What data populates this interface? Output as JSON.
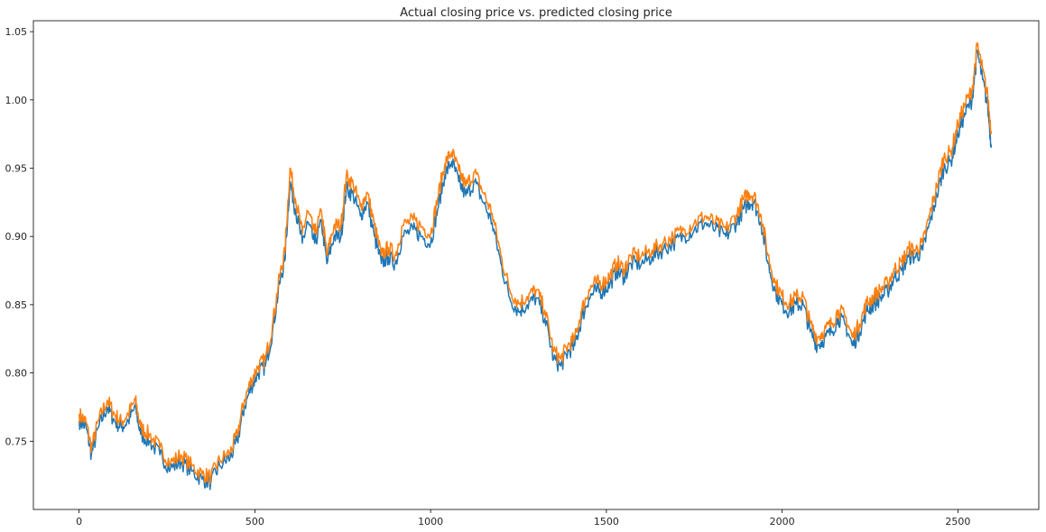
{
  "chart_data": {
    "type": "line",
    "title": "Actual closing price vs. predicted closing price",
    "xlabel": "",
    "ylabel": "",
    "xlim": [
      -130,
      2730
    ],
    "ylim": [
      0.7,
      1.058
    ],
    "xticks": [
      0,
      500,
      1000,
      1500,
      2000,
      2500
    ],
    "xtick_labels": [
      "0",
      "500",
      "1000",
      "1500",
      "2000",
      "2500"
    ],
    "yticks": [
      0.75,
      0.8,
      0.85,
      0.9,
      0.95,
      1.0,
      1.05
    ],
    "ytick_labels": [
      "0.75",
      "0.80",
      "0.85",
      "0.90",
      "0.95",
      "1.00",
      "1.05"
    ],
    "grid": false,
    "legend": "none",
    "series": [
      {
        "color": "#1f77b4",
        "points": [
          [
            0,
            0.765
          ],
          [
            20,
            0.76
          ],
          [
            35,
            0.74
          ],
          [
            55,
            0.76
          ],
          [
            80,
            0.775
          ],
          [
            100,
            0.765
          ],
          [
            120,
            0.76
          ],
          [
            140,
            0.765
          ],
          [
            160,
            0.775
          ],
          [
            175,
            0.755
          ],
          [
            200,
            0.75
          ],
          [
            230,
            0.74
          ],
          [
            260,
            0.73
          ],
          [
            290,
            0.735
          ],
          [
            320,
            0.728
          ],
          [
            350,
            0.722
          ],
          [
            375,
            0.72
          ],
          [
            400,
            0.732
          ],
          [
            430,
            0.738
          ],
          [
            450,
            0.75
          ],
          [
            470,
            0.775
          ],
          [
            490,
            0.79
          ],
          [
            510,
            0.8
          ],
          [
            530,
            0.805
          ],
          [
            550,
            0.83
          ],
          [
            570,
            0.865
          ],
          [
            585,
            0.882
          ],
          [
            600,
            0.94
          ],
          [
            615,
            0.92
          ],
          [
            635,
            0.895
          ],
          [
            650,
            0.91
          ],
          [
            670,
            0.895
          ],
          [
            690,
            0.91
          ],
          [
            705,
            0.88
          ],
          [
            725,
            0.9
          ],
          [
            745,
            0.9
          ],
          [
            760,
            0.935
          ],
          [
            780,
            0.93
          ],
          [
            800,
            0.915
          ],
          [
            820,
            0.925
          ],
          [
            840,
            0.9
          ],
          [
            860,
            0.88
          ],
          [
            880,
            0.885
          ],
          [
            900,
            0.88
          ],
          [
            920,
            0.9
          ],
          [
            950,
            0.905
          ],
          [
            975,
            0.9
          ],
          [
            1000,
            0.895
          ],
          [
            1020,
            0.92
          ],
          [
            1040,
            0.945
          ],
          [
            1060,
            0.955
          ],
          [
            1080,
            0.94
          ],
          [
            1100,
            0.93
          ],
          [
            1125,
            0.94
          ],
          [
            1150,
            0.925
          ],
          [
            1175,
            0.91
          ],
          [
            1200,
            0.88
          ],
          [
            1225,
            0.855
          ],
          [
            1250,
            0.845
          ],
          [
            1275,
            0.85
          ],
          [
            1300,
            0.855
          ],
          [
            1325,
            0.84
          ],
          [
            1350,
            0.81
          ],
          [
            1370,
            0.805
          ],
          [
            1390,
            0.815
          ],
          [
            1410,
            0.82
          ],
          [
            1430,
            0.84
          ],
          [
            1450,
            0.855
          ],
          [
            1470,
            0.86
          ],
          [
            1490,
            0.86
          ],
          [
            1510,
            0.865
          ],
          [
            1530,
            0.875
          ],
          [
            1550,
            0.87
          ],
          [
            1570,
            0.88
          ],
          [
            1600,
            0.88
          ],
          [
            1630,
            0.885
          ],
          [
            1660,
            0.89
          ],
          [
            1690,
            0.895
          ],
          [
            1720,
            0.9
          ],
          [
            1750,
            0.905
          ],
          [
            1780,
            0.91
          ],
          [
            1810,
            0.905
          ],
          [
            1840,
            0.9
          ],
          [
            1870,
            0.91
          ],
          [
            1890,
            0.92
          ],
          [
            1905,
            0.925
          ],
          [
            1920,
            0.925
          ],
          [
            1940,
            0.91
          ],
          [
            1960,
            0.88
          ],
          [
            1980,
            0.86
          ],
          [
            2000,
            0.85
          ],
          [
            2020,
            0.845
          ],
          [
            2040,
            0.85
          ],
          [
            2060,
            0.85
          ],
          [
            2080,
            0.83
          ],
          [
            2100,
            0.82
          ],
          [
            2120,
            0.825
          ],
          [
            2140,
            0.83
          ],
          [
            2160,
            0.84
          ],
          [
            2180,
            0.835
          ],
          [
            2200,
            0.82
          ],
          [
            2220,
            0.83
          ],
          [
            2240,
            0.845
          ],
          [
            2260,
            0.85
          ],
          [
            2280,
            0.855
          ],
          [
            2300,
            0.86
          ],
          [
            2320,
            0.87
          ],
          [
            2340,
            0.875
          ],
          [
            2360,
            0.885
          ],
          [
            2380,
            0.885
          ],
          [
            2400,
            0.89
          ],
          [
            2420,
            0.91
          ],
          [
            2440,
            0.93
          ],
          [
            2460,
            0.95
          ],
          [
            2480,
            0.955
          ],
          [
            2500,
            0.975
          ],
          [
            2520,
            0.99
          ],
          [
            2540,
            1.0
          ],
          [
            2555,
            1.035
          ],
          [
            2570,
            1.015
          ],
          [
            2585,
            0.995
          ],
          [
            2595,
            0.965
          ]
        ]
      },
      {
        "color": "#ff7f0e",
        "points": [
          [
            0,
            0.77
          ],
          [
            20,
            0.764
          ],
          [
            35,
            0.745
          ],
          [
            55,
            0.765
          ],
          [
            80,
            0.78
          ],
          [
            100,
            0.77
          ],
          [
            120,
            0.764
          ],
          [
            140,
            0.77
          ],
          [
            160,
            0.78
          ],
          [
            175,
            0.76
          ],
          [
            200,
            0.755
          ],
          [
            230,
            0.745
          ],
          [
            260,
            0.734
          ],
          [
            290,
            0.74
          ],
          [
            320,
            0.732
          ],
          [
            350,
            0.726
          ],
          [
            375,
            0.724
          ],
          [
            400,
            0.736
          ],
          [
            430,
            0.742
          ],
          [
            450,
            0.755
          ],
          [
            470,
            0.78
          ],
          [
            490,
            0.795
          ],
          [
            510,
            0.805
          ],
          [
            530,
            0.81
          ],
          [
            550,
            0.835
          ],
          [
            570,
            0.87
          ],
          [
            585,
            0.888
          ],
          [
            600,
            0.95
          ],
          [
            615,
            0.928
          ],
          [
            635,
            0.902
          ],
          [
            650,
            0.918
          ],
          [
            670,
            0.902
          ],
          [
            690,
            0.918
          ],
          [
            705,
            0.886
          ],
          [
            725,
            0.908
          ],
          [
            745,
            0.908
          ],
          [
            760,
            0.944
          ],
          [
            780,
            0.938
          ],
          [
            800,
            0.922
          ],
          [
            820,
            0.932
          ],
          [
            840,
            0.908
          ],
          [
            860,
            0.886
          ],
          [
            880,
            0.892
          ],
          [
            900,
            0.886
          ],
          [
            920,
            0.908
          ],
          [
            950,
            0.912
          ],
          [
            975,
            0.907
          ],
          [
            1000,
            0.902
          ],
          [
            1020,
            0.928
          ],
          [
            1040,
            0.953
          ],
          [
            1060,
            0.962
          ],
          [
            1080,
            0.948
          ],
          [
            1100,
            0.937
          ],
          [
            1125,
            0.947
          ],
          [
            1150,
            0.932
          ],
          [
            1175,
            0.917
          ],
          [
            1200,
            0.886
          ],
          [
            1225,
            0.861
          ],
          [
            1250,
            0.851
          ],
          [
            1275,
            0.856
          ],
          [
            1300,
            0.861
          ],
          [
            1325,
            0.846
          ],
          [
            1350,
            0.816
          ],
          [
            1370,
            0.81
          ],
          [
            1390,
            0.82
          ],
          [
            1410,
            0.825
          ],
          [
            1430,
            0.846
          ],
          [
            1450,
            0.861
          ],
          [
            1470,
            0.866
          ],
          [
            1490,
            0.866
          ],
          [
            1510,
            0.871
          ],
          [
            1530,
            0.881
          ],
          [
            1550,
            0.876
          ],
          [
            1570,
            0.886
          ],
          [
            1600,
            0.886
          ],
          [
            1630,
            0.89
          ],
          [
            1660,
            0.895
          ],
          [
            1690,
            0.9
          ],
          [
            1720,
            0.905
          ],
          [
            1750,
            0.91
          ],
          [
            1780,
            0.915
          ],
          [
            1810,
            0.91
          ],
          [
            1840,
            0.905
          ],
          [
            1870,
            0.916
          ],
          [
            1890,
            0.927
          ],
          [
            1905,
            0.932
          ],
          [
            1920,
            0.93
          ],
          [
            1940,
            0.916
          ],
          [
            1960,
            0.886
          ],
          [
            1980,
            0.866
          ],
          [
            2000,
            0.856
          ],
          [
            2020,
            0.851
          ],
          [
            2040,
            0.856
          ],
          [
            2060,
            0.856
          ],
          [
            2080,
            0.836
          ],
          [
            2100,
            0.826
          ],
          [
            2120,
            0.831
          ],
          [
            2140,
            0.836
          ],
          [
            2160,
            0.846
          ],
          [
            2180,
            0.841
          ],
          [
            2200,
            0.826
          ],
          [
            2220,
            0.836
          ],
          [
            2240,
            0.851
          ],
          [
            2260,
            0.856
          ],
          [
            2280,
            0.861
          ],
          [
            2300,
            0.866
          ],
          [
            2320,
            0.876
          ],
          [
            2340,
            0.881
          ],
          [
            2360,
            0.891
          ],
          [
            2380,
            0.89
          ],
          [
            2400,
            0.895
          ],
          [
            2420,
            0.916
          ],
          [
            2440,
            0.937
          ],
          [
            2460,
            0.958
          ],
          [
            2480,
            0.962
          ],
          [
            2500,
            0.982
          ],
          [
            2520,
            0.997
          ],
          [
            2540,
            1.007
          ],
          [
            2555,
            1.04
          ],
          [
            2570,
            1.022
          ],
          [
            2585,
            1.002
          ],
          [
            2595,
            0.975
          ]
        ]
      }
    ]
  }
}
